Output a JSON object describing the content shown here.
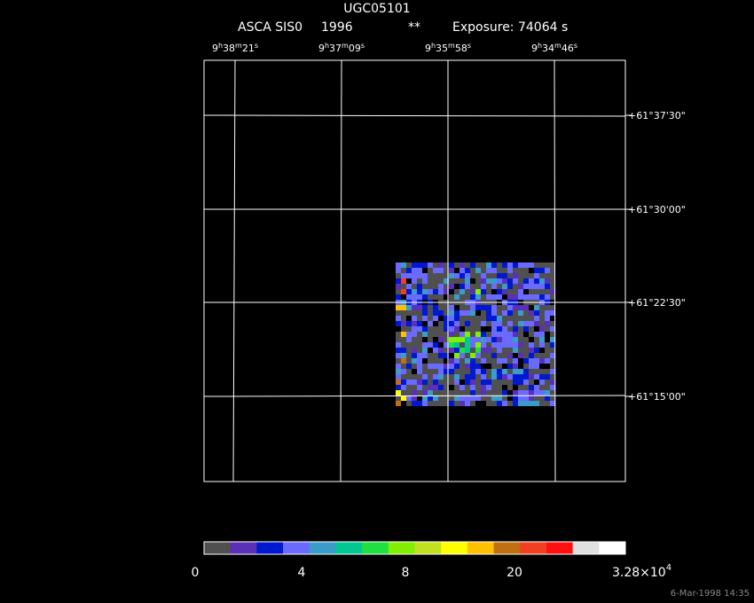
{
  "header": {
    "object": "UGC05101",
    "instrument": "ASCA SIS0",
    "year": "1996",
    "flag": "**",
    "exposure": "Exposure: 74064 s"
  },
  "ra_labels": [
    [
      "9",
      "h",
      "38",
      "m",
      "21",
      "s"
    ],
    [
      "9",
      "h",
      "37",
      "m",
      "09",
      "s"
    ],
    [
      "9",
      "h",
      "35",
      "m",
      "58",
      "s"
    ],
    [
      "9",
      "h",
      "34",
      "m",
      "46",
      "s"
    ]
  ],
  "dec_labels": [
    "+61°37'30\"",
    "+61°30'00\"",
    "+61°22'30\"",
    "+61°15'00\""
  ],
  "colorbar": {
    "colors": [
      "#505050",
      "#5a30b8",
      "#0018d0",
      "#6a6aff",
      "#3a9cc8",
      "#00c890",
      "#20e040",
      "#80f000",
      "#c0e020",
      "#ffff00",
      "#ffc000",
      "#c07010",
      "#f04020",
      "#ff1010",
      "#e0e0e0",
      "#ffffff"
    ],
    "labels": [
      "0",
      "4",
      "8",
      "20"
    ],
    "max_label": "3.28×10",
    "max_exponent": "4"
  },
  "footer": "6-Mar-1998 14:35"
}
